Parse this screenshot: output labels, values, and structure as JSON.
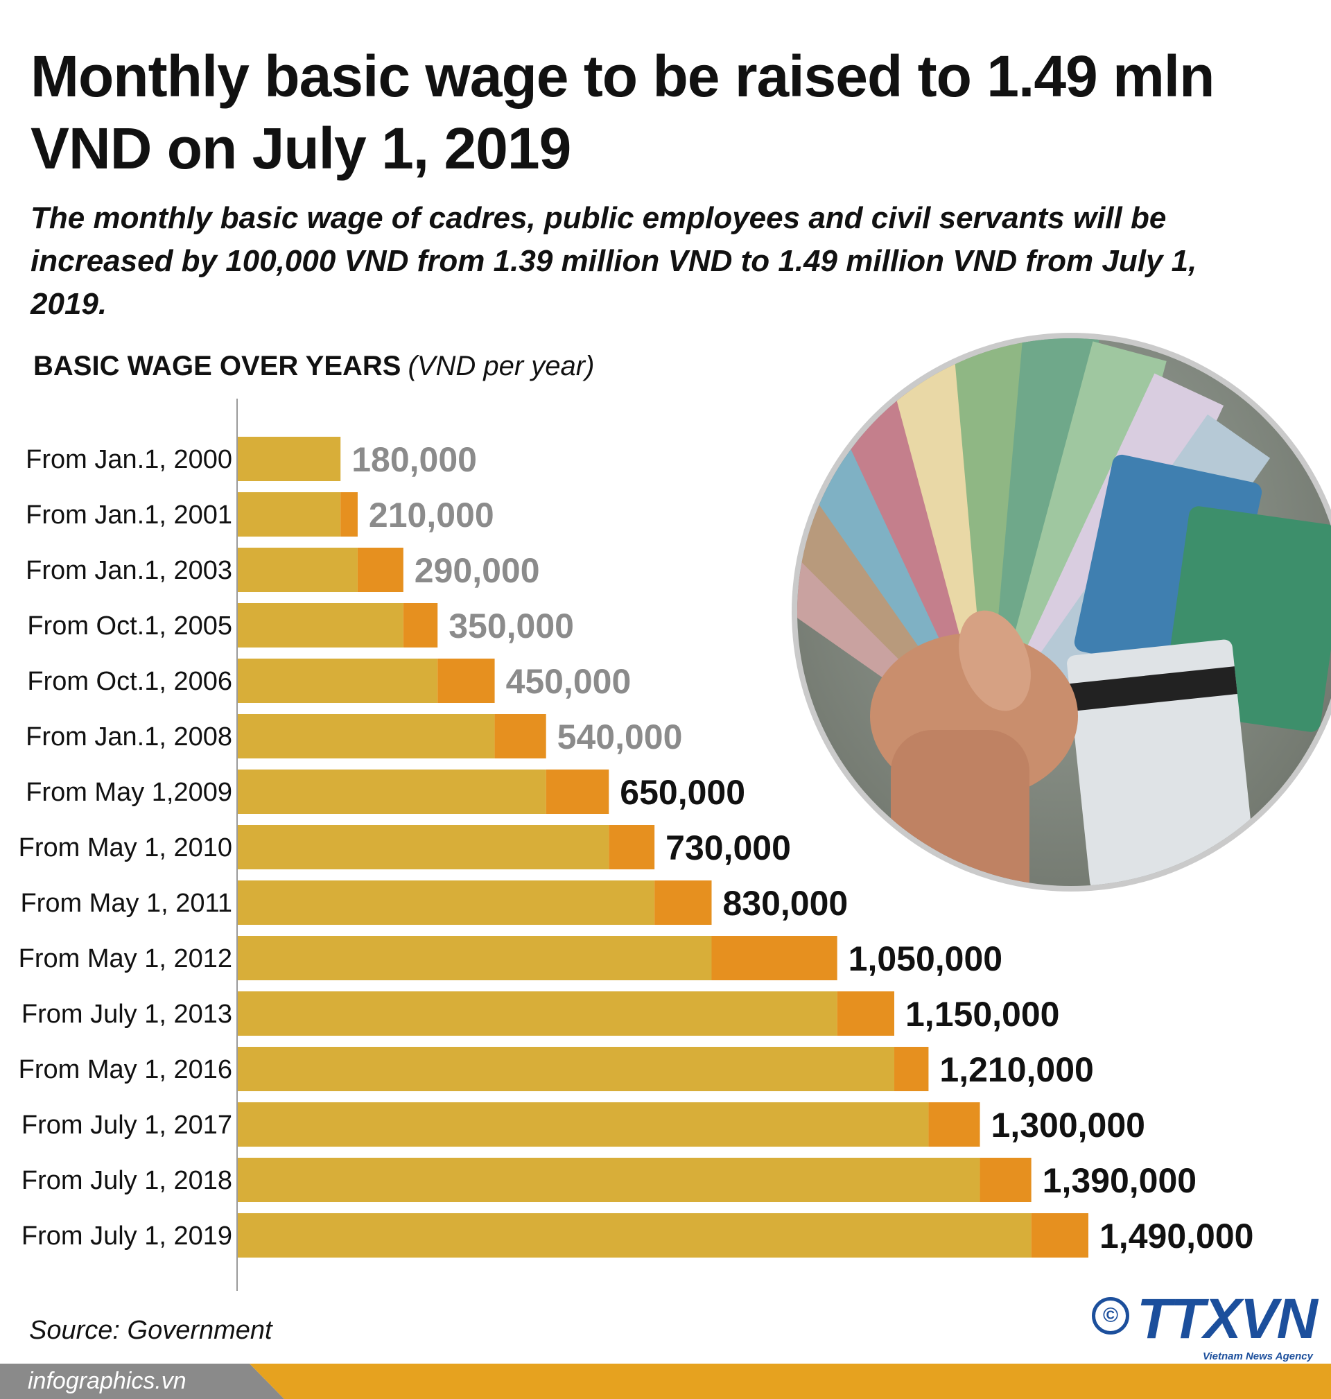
{
  "title": "Monthly basic wage to be raised to 1.49 mln VND on July 1, 2019",
  "subtitle": "The monthly basic wage of cadres, public employees and civil servants will be increased by 100,000 VND from 1.39 million VND to 1.49 million VND from July 1, 2019.",
  "colors": {
    "bar_base": "#d8ae39",
    "bar_increment": "#e6901f",
    "label_grey": "#8b8b8b",
    "label_black": "#111111",
    "brand_blue": "#1c4f9c",
    "footer_orange": "#e6a21f"
  },
  "chart_data": {
    "type": "bar",
    "orientation": "horizontal",
    "title": "BASIC WAGE OVER YEARS",
    "unit_label": "(VND per year)",
    "categories": [
      "From Jan.1, 2000",
      "From Jan.1, 2001",
      "From Jan.1, 2003",
      "From Oct.1, 2005",
      "From Oct.1, 2006",
      "From Jan.1, 2008",
      "From May 1,2009",
      "From May 1, 2010",
      "From May 1, 2011",
      "From May 1, 2012",
      "From July 1, 2013",
      "From May 1, 2016",
      "From July 1, 2017",
      "From July 1, 2018",
      "From July 1, 2019"
    ],
    "values": [
      180000,
      210000,
      290000,
      350000,
      450000,
      540000,
      650000,
      730000,
      830000,
      1050000,
      1150000,
      1210000,
      1300000,
      1390000,
      1490000
    ],
    "value_labels": [
      "180,000",
      "210,000",
      "290,000",
      "350,000",
      "450,000",
      "540,000",
      "650,000",
      "730,000",
      "830,000",
      "1,050,000",
      "1,150,000",
      "1,210,000",
      "1,300,000",
      "1,390,000",
      "1,490,000"
    ],
    "label_color_groups": [
      "grey",
      "grey",
      "grey",
      "grey",
      "grey",
      "grey",
      "black",
      "black",
      "black",
      "black",
      "black",
      "black",
      "black",
      "black",
      "black"
    ],
    "segments": "each bar split into previous level (base color) and increment over previous (accent color)"
  },
  "photo": {
    "icon": "money-fan-photo"
  },
  "footer": {
    "source": "Source: Government",
    "copyright": "©",
    "logo": "TTXVN",
    "logo_sub": "Vietnam News Agency",
    "website": "infographics.vn"
  }
}
